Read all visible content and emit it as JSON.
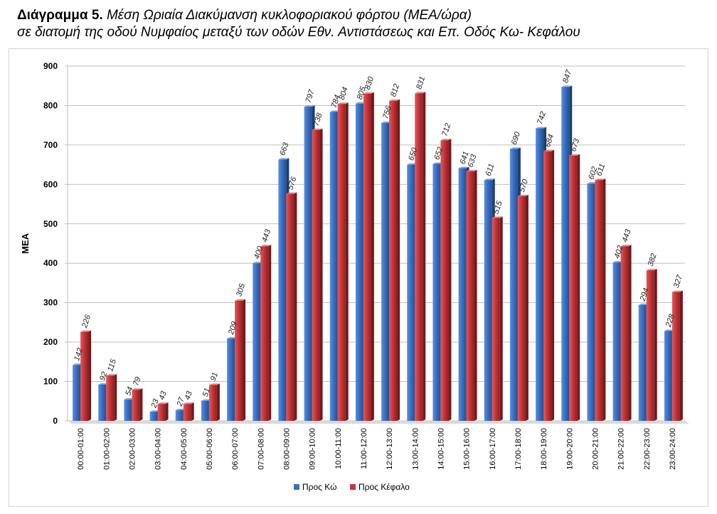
{
  "title": {
    "prefix": "Διάγραμμα 5.",
    "line1": "Μέση Ωριαία Διακύμανση κυκλοφοριακού φόρτου (ΜΕΑ/ώρα)",
    "line2": "σε διατομή της οδού Νυμφαίος  μεταξύ των οδών Εθν. Αντιστάσεως και Επ. Οδός Κω- Κεφάλου"
  },
  "chart_data": {
    "type": "bar",
    "ylabel": "ΜΕΑ",
    "xlabel": "",
    "ylim": [
      0,
      900
    ],
    "yticks": [
      0,
      100,
      200,
      300,
      400,
      500,
      600,
      700,
      800,
      900
    ],
    "grid": true,
    "legend_position": "bottom",
    "categories": [
      "00:00-01:00",
      "01:00-02:00",
      "02:00-03:00",
      "03:00-04:00",
      "04:00-05:00",
      "05:00-06:00",
      "06:00-07:00",
      "07:00-08:00",
      "08:00-09:00",
      "09:00-10:00",
      "10:00-11:00",
      "11:00-12:00",
      "12:00-13:00",
      "13:00-14:00",
      "14:00-15:00",
      "15:00-16:00",
      "16:00-17:00",
      "17:00-18:00",
      "18:00-19:00",
      "19:00-20:00",
      "20:00-21:00",
      "21:00-22:00",
      "22:00-23:00",
      "23:00-24:00"
    ],
    "series": [
      {
        "name": "Προς Κώ",
        "color": "#3a6fc2",
        "values": [
          142,
          92,
          54,
          23,
          27,
          51,
          209,
          400,
          663,
          797,
          784,
          805,
          756,
          650,
          652,
          641,
          611,
          690,
          742,
          847,
          602,
          402,
          294,
          228
        ]
      },
      {
        "name": "Προς Κέφαλο",
        "color": "#c8363a",
        "values": [
          226,
          115,
          79,
          43,
          43,
          91,
          305,
          443,
          576,
          738,
          804,
          830,
          812,
          831,
          712,
          633,
          515,
          570,
          684,
          673,
          611,
          443,
          382,
          327
        ]
      }
    ]
  }
}
